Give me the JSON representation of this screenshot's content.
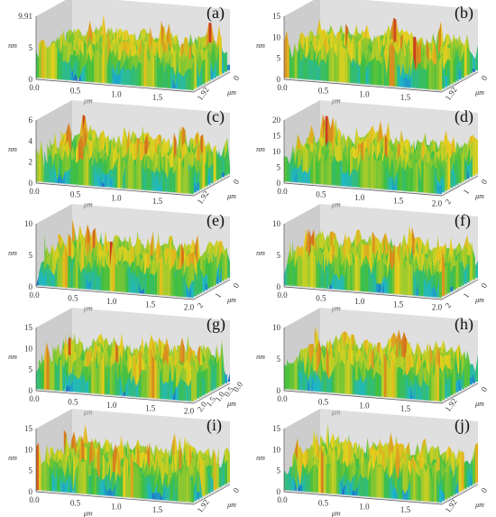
{
  "figure": {
    "panels": [
      {
        "label": "(a)",
        "z_ticks": [
          "0",
          "5",
          "9.91"
        ],
        "x_ticks": [
          "0.0",
          "0.5",
          "1.0",
          "1.5"
        ],
        "y_ticks": [
          "0",
          "1.92"
        ],
        "z_unit": "nm",
        "x_unit": "μm",
        "y_unit": "μm"
      },
      {
        "label": "(b)",
        "z_ticks": [
          "0",
          "5",
          "10",
          "15"
        ],
        "x_ticks": [
          "0.0",
          "0.5",
          "1.0",
          "1.5"
        ],
        "y_ticks": [
          "0",
          "1.92"
        ],
        "z_unit": "nm",
        "x_unit": "μm",
        "y_unit": "μm"
      },
      {
        "label": "(c)",
        "z_ticks": [
          "0",
          "2",
          "4",
          "6"
        ],
        "x_ticks": [
          "0.0",
          "0.5",
          "1.0",
          "1.5"
        ],
        "y_ticks": [
          "0",
          "1.92"
        ],
        "z_unit": "nm",
        "x_unit": "μm",
        "y_unit": "μm"
      },
      {
        "label": "(d)",
        "z_ticks": [
          "0",
          "5",
          "10",
          "15",
          "20"
        ],
        "x_ticks": [
          "0.0",
          "0.5",
          "1.0",
          "1.5",
          "2.0"
        ],
        "y_ticks": [
          "0",
          "1",
          "2"
        ],
        "z_unit": "nm",
        "x_unit": "μm",
        "y_unit": "μm"
      },
      {
        "label": "(e)",
        "z_ticks": [
          "0",
          "5",
          "10"
        ],
        "x_ticks": [
          "0.0",
          "0.5",
          "1.0",
          "1.5",
          "2.0"
        ],
        "y_ticks": [
          "0",
          "1",
          "2"
        ],
        "z_unit": "nm",
        "x_unit": "μm",
        "y_unit": "μm"
      },
      {
        "label": "(f)",
        "z_ticks": [
          "0",
          "5",
          "10"
        ],
        "x_ticks": [
          "0.0",
          "0.5",
          "1.0",
          "1.5",
          "2.0"
        ],
        "y_ticks": [
          "0",
          "1",
          "2"
        ],
        "z_unit": "nm",
        "x_unit": "μm",
        "y_unit": "μm"
      },
      {
        "label": "(g)",
        "z_ticks": [
          "0",
          "5",
          "10",
          "15"
        ],
        "x_ticks": [
          "0.0",
          "0.5",
          "1.0",
          "1.5",
          "2.0"
        ],
        "y_ticks": [
          "0.0",
          "0.5",
          "1.0",
          "1.5",
          "2.0"
        ],
        "z_unit": "nm",
        "x_unit": "μm",
        "y_unit": "μm"
      },
      {
        "label": "(h)",
        "z_ticks": [
          "0",
          "5",
          "10"
        ],
        "x_ticks": [
          "0.0",
          "0.5",
          "1.0",
          "1.5"
        ],
        "y_ticks": [
          "0",
          "1.92"
        ],
        "z_unit": "nm",
        "x_unit": "μm",
        "y_unit": "μm"
      },
      {
        "label": "(i)",
        "z_ticks": [
          "0",
          "5",
          "10",
          "15"
        ],
        "x_ticks": [
          "0.0",
          "0.5",
          "1.0",
          "1.5"
        ],
        "y_ticks": [
          "0",
          "1.92"
        ],
        "z_unit": "nm",
        "x_unit": "μm",
        "y_unit": "μm"
      },
      {
        "label": "(j)",
        "z_ticks": [
          "0",
          "5",
          "10",
          "15"
        ],
        "x_ticks": [
          "0.0",
          "0.5",
          "1.0",
          "1.5"
        ],
        "y_ticks": [
          "0",
          "1.92"
        ],
        "z_unit": "nm",
        "x_unit": "μm",
        "y_unit": "μm"
      }
    ],
    "colors": {
      "low": "#1a3fbf",
      "mid_low": "#1fb8c8",
      "mid": "#3fbf3f",
      "mid_high": "#e6d21e",
      "high": "#c8321e",
      "wall": "#c4c4c4",
      "floor": "#e2e2e2"
    }
  }
}
